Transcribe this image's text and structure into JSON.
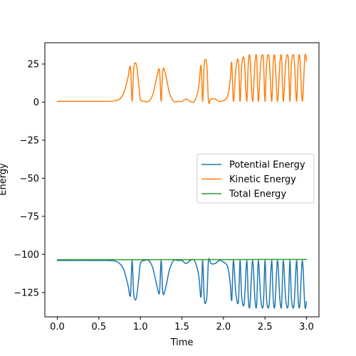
{
  "chart_data": {
    "type": "line",
    "title": "",
    "xlabel": "Time",
    "ylabel": "Energy",
    "xlim": [
      -0.15,
      3.15
    ],
    "ylim": [
      -141,
      39
    ],
    "xticks": [
      0.0,
      0.5,
      1.0,
      1.5,
      2.0,
      2.5,
      3.0
    ],
    "xtick_labels": [
      "0.0",
      "0.5",
      "1.0",
      "1.5",
      "2.0",
      "2.5",
      "3.0"
    ],
    "yticks": [
      25,
      0,
      -25,
      -50,
      -75,
      -100,
      -125
    ],
    "ytick_labels": [
      "25",
      "0",
      "−25",
      "−50",
      "−75",
      "−100",
      "−125"
    ],
    "grid": false,
    "legend_position": "center-right",
    "series": [
      {
        "name": "Potential Energy",
        "color": "#1f77b4",
        "x": [
          0.0,
          0.6,
          0.7,
          0.75,
          0.8,
          0.85,
          0.88,
          0.9,
          0.92,
          0.95,
          0.98,
          1.0,
          1.05,
          1.1,
          1.15,
          1.2,
          1.23,
          1.25,
          1.27,
          1.3,
          1.35,
          1.4,
          1.45,
          1.5,
          1.55,
          1.6,
          1.65,
          1.7,
          1.73,
          1.75,
          1.77,
          1.8,
          1.82,
          1.85,
          1.9,
          1.95,
          2.0,
          2.05,
          2.08,
          2.1,
          2.12,
          2.15,
          2.18,
          2.2,
          2.22,
          2.25,
          2.28,
          2.3,
          2.32,
          2.35,
          2.38,
          2.4,
          2.42,
          2.45,
          2.48,
          2.5,
          2.52,
          2.55,
          2.58,
          2.6,
          2.62,
          2.65,
          2.68,
          2.7,
          2.72,
          2.75,
          2.78,
          2.8,
          2.82,
          2.85,
          2.88,
          2.9,
          2.92,
          2.95,
          2.98,
          3.0
        ],
        "y": [
          -104,
          -104,
          -104.5,
          -106,
          -110,
          -120,
          -127,
          -104,
          -126,
          -129,
          -116,
          -106,
          -104,
          -104,
          -109,
          -121,
          -125,
          -104,
          -125,
          -123,
          -110,
          -104,
          -104,
          -104,
          -106,
          -104,
          -104,
          -113,
          -128,
          -104,
          -130,
          -128,
          -104,
          -106,
          -106,
          -104,
          -105,
          -108,
          -118,
          -130,
          -104,
          -126,
          -131,
          -104,
          -128,
          -132,
          -104,
          -130,
          -133,
          -104,
          -130,
          -133,
          -104,
          -130,
          -133,
          -104,
          -130,
          -133,
          -104,
          -130,
          -133,
          -104,
          -130,
          -133,
          -104,
          -130,
          -133,
          -104,
          -130,
          -133,
          -104,
          -130,
          -133,
          -104,
          -134,
          -131
        ]
      },
      {
        "name": "Kinetic Energy",
        "color": "#ff7f0e",
        "x": [
          0.0,
          0.6,
          0.7,
          0.75,
          0.8,
          0.85,
          0.88,
          0.9,
          0.92,
          0.95,
          0.98,
          1.0,
          1.05,
          1.1,
          1.15,
          1.2,
          1.23,
          1.25,
          1.27,
          1.3,
          1.35,
          1.4,
          1.45,
          1.5,
          1.55,
          1.6,
          1.65,
          1.7,
          1.73,
          1.75,
          1.77,
          1.8,
          1.82,
          1.85,
          1.9,
          1.95,
          2.0,
          2.05,
          2.08,
          2.1,
          2.12,
          2.15,
          2.18,
          2.2,
          2.22,
          2.25,
          2.28,
          2.3,
          2.32,
          2.35,
          2.38,
          2.4,
          2.42,
          2.45,
          2.48,
          2.5,
          2.52,
          2.55,
          2.58,
          2.6,
          2.62,
          2.65,
          2.68,
          2.7,
          2.72,
          2.75,
          2.78,
          2.8,
          2.82,
          2.85,
          2.88,
          2.9,
          2.92,
          2.95,
          2.98,
          3.0
        ],
        "y": [
          0.5,
          0.5,
          1,
          2,
          6,
          16,
          23,
          0.5,
          22,
          25,
          12,
          2,
          0.5,
          0.5,
          5,
          17,
          21,
          0.5,
          21,
          19,
          6,
          0.5,
          0.5,
          0.5,
          2,
          0.5,
          0.5,
          9,
          24,
          0.5,
          26,
          24,
          0.5,
          2,
          2,
          0.5,
          1,
          4,
          14,
          26,
          0.5,
          22,
          27,
          0.5,
          24,
          28,
          0.5,
          26,
          29,
          0.5,
          26,
          29,
          0.5,
          26,
          29,
          0.5,
          26,
          29,
          0.5,
          26,
          29,
          0.5,
          26,
          29,
          0.5,
          26,
          29,
          0.5,
          26,
          29,
          0.5,
          26,
          29,
          0.5,
          30,
          27
        ]
      },
      {
        "name": "Total Energy",
        "color": "#2ca02c",
        "x": [
          0.0,
          0.5,
          1.0,
          1.5,
          2.0,
          2.5,
          3.0
        ],
        "y": [
          -103.5,
          -103.5,
          -103.5,
          -103.4,
          -103.4,
          -103.3,
          -103.3
        ]
      }
    ]
  }
}
